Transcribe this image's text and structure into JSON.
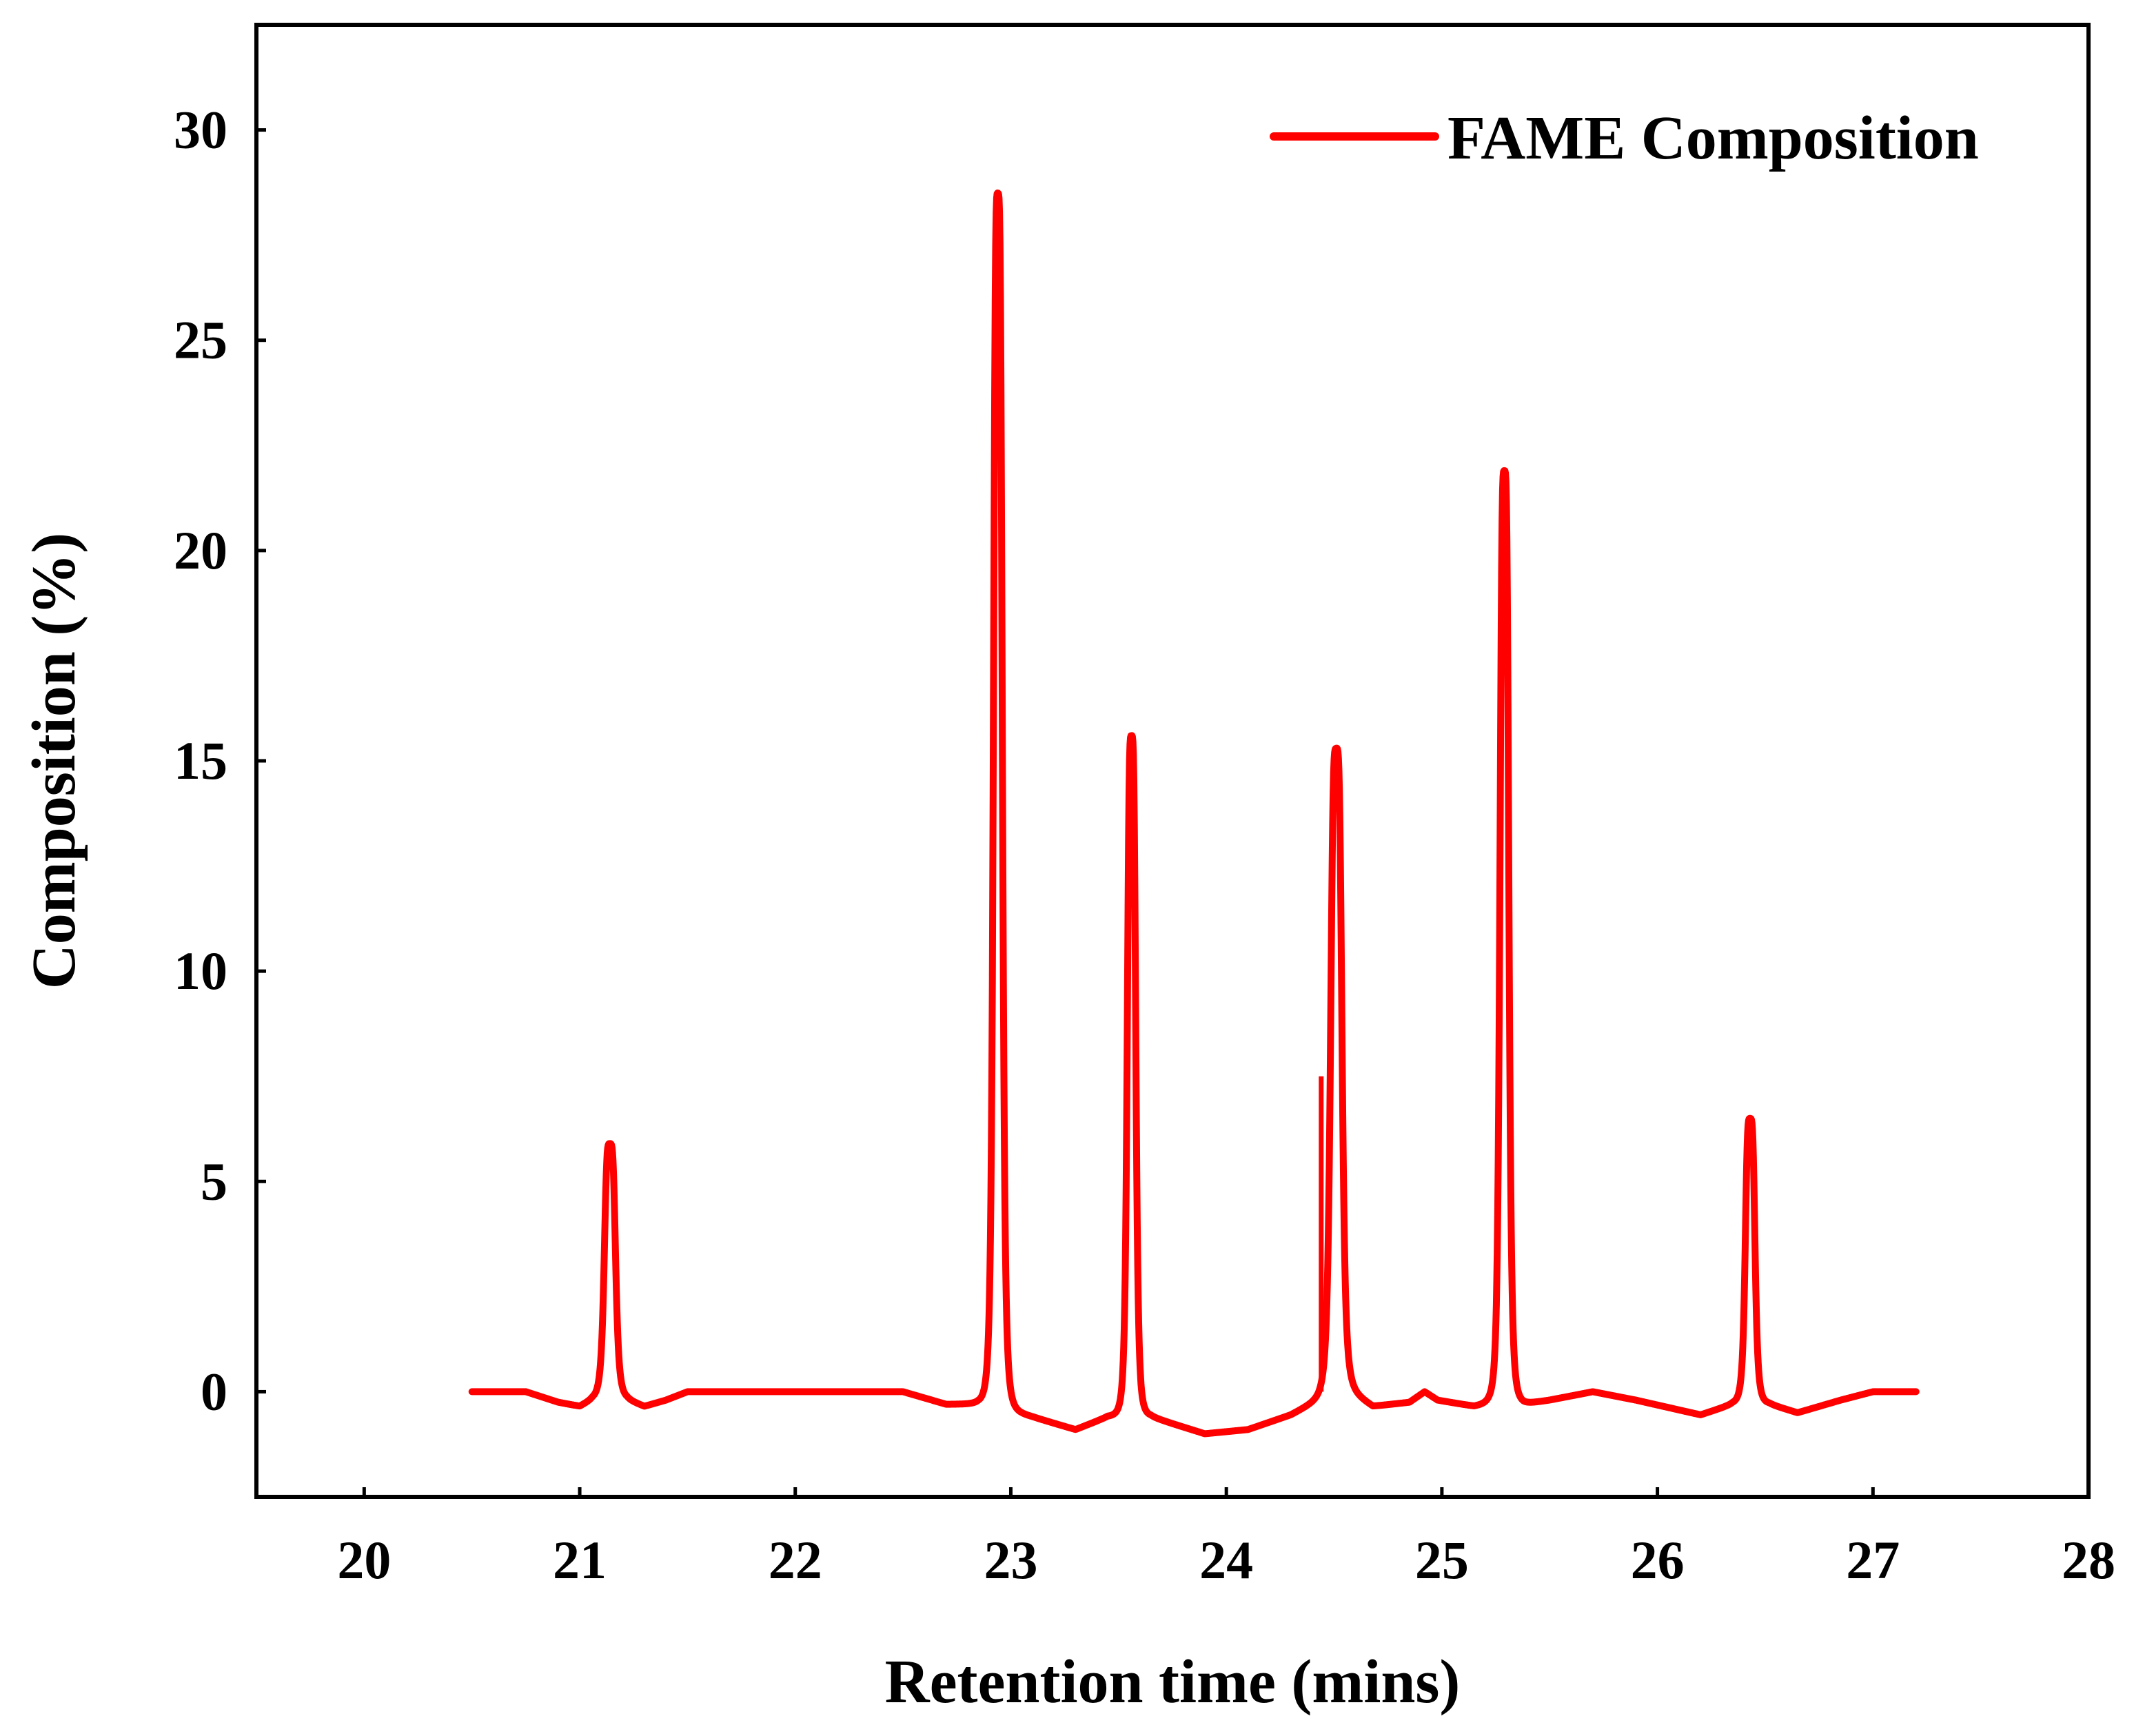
{
  "chart_data": {
    "type": "line",
    "title": "",
    "xlabel": "Retention time (mins)",
    "ylabel": "Composition (%)",
    "xlim": [
      19.5,
      28
    ],
    "ylim": [
      -2.5,
      32.5
    ],
    "xticks": [
      20,
      21,
      22,
      23,
      24,
      25,
      26,
      27,
      28
    ],
    "yticks": [
      0,
      5,
      10,
      15,
      20,
      25,
      30
    ],
    "xtick_labels": [
      "20",
      "21",
      "22",
      23,
      "24",
      "25",
      "26",
      "27",
      "28"
    ],
    "ytick_labels": [
      "0",
      "5",
      "10",
      "15",
      "20",
      "25",
      "30"
    ],
    "grid": false,
    "legend_position": "top-right",
    "series": [
      {
        "name": "FAME Composition",
        "color": "#ff0000",
        "baseline": [
          [
            20.5,
            0
          ],
          [
            20.75,
            0
          ],
          [
            20.9,
            -0.25
          ],
          [
            21.0,
            -0.35
          ],
          [
            21.06,
            -0.2
          ],
          [
            21.22,
            -0.2
          ],
          [
            21.3,
            -0.35
          ],
          [
            21.4,
            -0.2
          ],
          [
            21.5,
            0
          ],
          [
            22.5,
            0
          ],
          [
            22.7,
            -0.3
          ],
          [
            22.85,
            -0.3
          ],
          [
            23.1,
            -0.6
          ],
          [
            23.3,
            -0.9
          ],
          [
            23.45,
            -0.6
          ],
          [
            23.65,
            -0.6
          ],
          [
            23.9,
            -1.0
          ],
          [
            24.1,
            -0.9
          ],
          [
            24.3,
            -0.55
          ],
          [
            24.47,
            -0.1
          ],
          [
            24.57,
            0
          ],
          [
            24.68,
            -0.35
          ],
          [
            24.85,
            -0.25
          ],
          [
            24.92,
            0
          ],
          [
            24.98,
            -0.2
          ],
          [
            25.15,
            -0.35
          ],
          [
            25.22,
            -0.3
          ],
          [
            25.38,
            -0.3
          ],
          [
            25.5,
            -0.2
          ],
          [
            25.7,
            0
          ],
          [
            25.9,
            -0.2
          ],
          [
            26.2,
            -0.55
          ],
          [
            26.35,
            -0.3
          ],
          [
            26.52,
            -0.3
          ],
          [
            26.65,
            -0.5
          ],
          [
            26.85,
            -0.2
          ],
          [
            27.0,
            0
          ],
          [
            27.2,
            0
          ]
        ],
        "peaks": [
          {
            "x": 21.14,
            "y": 5.9,
            "width": 0.028
          },
          {
            "x": 22.94,
            "y": 28.5,
            "width": 0.022
          },
          {
            "x": 23.56,
            "y": 15.6,
            "width": 0.021
          },
          {
            "x": 24.51,
            "y": 15.3,
            "width": 0.028
          },
          {
            "x": 25.29,
            "y": 21.9,
            "width": 0.022
          },
          {
            "x": 26.43,
            "y": 6.5,
            "width": 0.024
          }
        ],
        "spike": {
          "x": 24.44,
          "y_from": 0,
          "y_to": 7.5
        }
      }
    ]
  }
}
